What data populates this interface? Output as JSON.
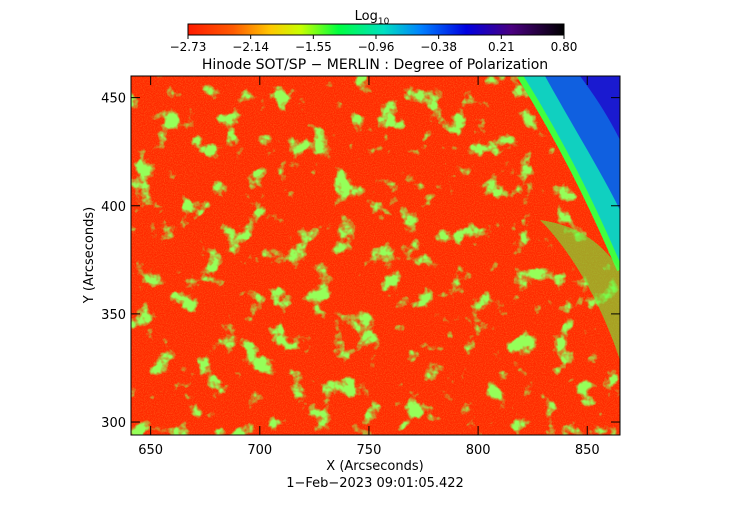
{
  "colorbar": {
    "title": "Log",
    "title_sub": "10",
    "ticks": [
      "−2.73",
      "−2.14",
      "−1.55",
      "−0.96",
      "−0.38",
      "0.21",
      "0.80"
    ]
  },
  "chart_data": {
    "type": "heatmap",
    "title": "Hinode SOT/SP − MERLIN : Degree of Polarization",
    "xlabel": "X (Arcseconds)",
    "ylabel": "Y (Arcseconds)",
    "xlim": [
      641,
      865
    ],
    "ylim": [
      294,
      460
    ],
    "xticks": [
      "650",
      "700",
      "750",
      "800",
      "850"
    ],
    "xtick_values": [
      650,
      700,
      750,
      800,
      850
    ],
    "yticks": [
      "300",
      "350",
      "400",
      "450"
    ],
    "ytick_values": [
      300,
      350,
      400,
      450
    ],
    "colorscale": "rainbow (red → yellow → green → cyan → blue → black)",
    "value_range": [
      -2.73,
      0.8
    ],
    "timestamp": "1−Feb−2023 09:01:05.422"
  }
}
